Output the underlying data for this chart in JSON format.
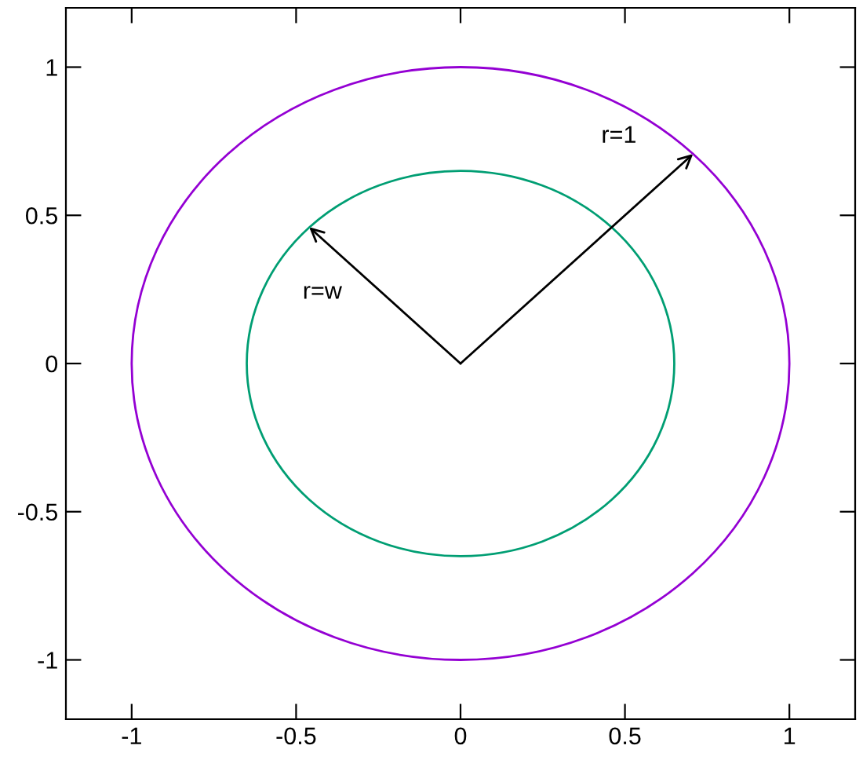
{
  "chart_data": {
    "type": "line",
    "xlim": [
      -1.2,
      1.2
    ],
    "ylim": [
      -1.2,
      1.2
    ],
    "xticks": [
      -1,
      -0.5,
      0,
      0.5,
      1
    ],
    "yticks": [
      -1,
      -0.5,
      0,
      0.5,
      1
    ],
    "grid": false,
    "annotations": [
      "r=1",
      "r=w"
    ]
  }
}
